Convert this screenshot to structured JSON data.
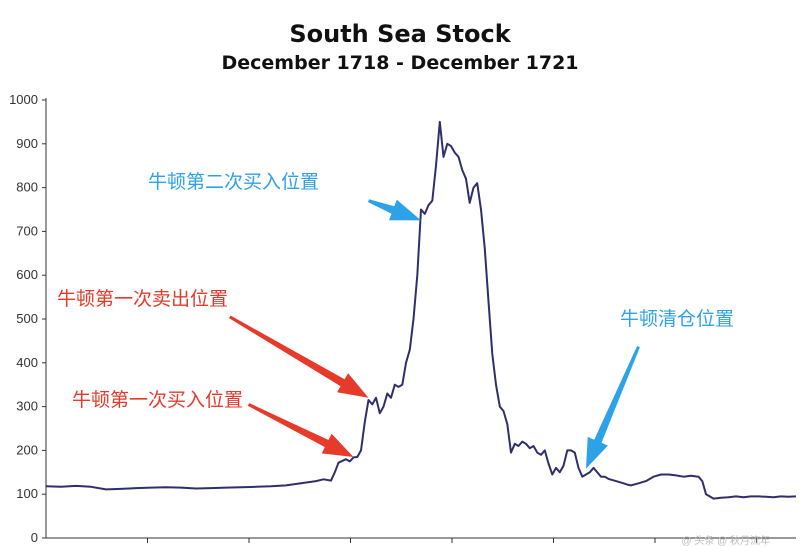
{
  "chart_data": {
    "type": "line",
    "title": "South Sea Stock",
    "subtitle": "December 1718 - December 1721",
    "xlabel": "",
    "ylabel": "",
    "ylim": [
      0,
      1000
    ],
    "yticks": [
      0,
      100,
      200,
      300,
      400,
      500,
      600,
      700,
      800,
      900,
      1000
    ],
    "grid": false,
    "series": [
      {
        "color": "#2f2f6e",
        "points": [
          [
            0,
            118
          ],
          [
            0.02,
            117
          ],
          [
            0.04,
            119
          ],
          [
            0.06,
            117
          ],
          [
            0.08,
            111
          ],
          [
            0.1,
            112
          ],
          [
            0.12,
            114
          ],
          [
            0.14,
            115
          ],
          [
            0.16,
            116
          ],
          [
            0.18,
            115
          ],
          [
            0.2,
            113
          ],
          [
            0.22,
            114
          ],
          [
            0.24,
            115
          ],
          [
            0.26,
            116
          ],
          [
            0.28,
            117
          ],
          [
            0.3,
            118
          ],
          [
            0.32,
            120
          ],
          [
            0.34,
            125
          ],
          [
            0.36,
            130
          ],
          [
            0.37,
            134
          ],
          [
            0.38,
            131
          ],
          [
            0.385,
            150
          ],
          [
            0.39,
            172
          ],
          [
            0.4,
            180
          ],
          [
            0.405,
            175
          ],
          [
            0.41,
            184
          ],
          [
            0.415,
            185
          ],
          [
            0.42,
            200
          ],
          [
            0.425,
            265
          ],
          [
            0.43,
            315
          ],
          [
            0.435,
            305
          ],
          [
            0.44,
            320
          ],
          [
            0.445,
            285
          ],
          [
            0.45,
            300
          ],
          [
            0.455,
            330
          ],
          [
            0.46,
            320
          ],
          [
            0.465,
            350
          ],
          [
            0.47,
            345
          ],
          [
            0.475,
            350
          ],
          [
            0.48,
            400
          ],
          [
            0.485,
            430
          ],
          [
            0.49,
            500
          ],
          [
            0.495,
            600
          ],
          [
            0.5,
            750
          ],
          [
            0.505,
            740
          ],
          [
            0.51,
            760
          ],
          [
            0.515,
            770
          ],
          [
            0.52,
            850
          ],
          [
            0.525,
            950
          ],
          [
            0.53,
            870
          ],
          [
            0.535,
            900
          ],
          [
            0.54,
            895
          ],
          [
            0.545,
            880
          ],
          [
            0.55,
            870
          ],
          [
            0.555,
            840
          ],
          [
            0.56,
            820
          ],
          [
            0.565,
            765
          ],
          [
            0.57,
            800
          ],
          [
            0.575,
            810
          ],
          [
            0.58,
            750
          ],
          [
            0.585,
            660
          ],
          [
            0.59,
            540
          ],
          [
            0.595,
            420
          ],
          [
            0.6,
            350
          ],
          [
            0.605,
            300
          ],
          [
            0.61,
            290
          ],
          [
            0.615,
            260
          ],
          [
            0.62,
            195
          ],
          [
            0.625,
            215
          ],
          [
            0.63,
            210
          ],
          [
            0.635,
            220
          ],
          [
            0.64,
            215
          ],
          [
            0.645,
            205
          ],
          [
            0.65,
            210
          ],
          [
            0.655,
            195
          ],
          [
            0.66,
            190
          ],
          [
            0.665,
            200
          ],
          [
            0.67,
            170
          ],
          [
            0.675,
            145
          ],
          [
            0.68,
            160
          ],
          [
            0.685,
            150
          ],
          [
            0.69,
            165
          ],
          [
            0.695,
            200
          ],
          [
            0.7,
            200
          ],
          [
            0.705,
            195
          ],
          [
            0.71,
            160
          ],
          [
            0.715,
            140
          ],
          [
            0.72,
            145
          ],
          [
            0.725,
            150
          ],
          [
            0.73,
            160
          ],
          [
            0.735,
            150
          ],
          [
            0.74,
            140
          ],
          [
            0.745,
            140
          ],
          [
            0.75,
            135
          ],
          [
            0.76,
            130
          ],
          [
            0.77,
            125
          ],
          [
            0.775,
            122
          ],
          [
            0.78,
            120
          ],
          [
            0.79,
            125
          ],
          [
            0.8,
            130
          ],
          [
            0.81,
            140
          ],
          [
            0.82,
            145
          ],
          [
            0.83,
            145
          ],
          [
            0.84,
            143
          ],
          [
            0.85,
            140
          ],
          [
            0.86,
            142
          ],
          [
            0.87,
            140
          ],
          [
            0.875,
            130
          ],
          [
            0.88,
            100
          ],
          [
            0.885,
            95
          ],
          [
            0.89,
            90
          ],
          [
            0.9,
            92
          ],
          [
            0.91,
            93
          ],
          [
            0.92,
            95
          ],
          [
            0.93,
            93
          ],
          [
            0.94,
            95
          ],
          [
            0.95,
            95
          ],
          [
            0.96,
            94
          ],
          [
            0.97,
            93
          ],
          [
            0.98,
            95
          ],
          [
            0.99,
            94
          ],
          [
            1.0,
            95
          ]
        ]
      }
    ],
    "annotations": [
      {
        "text": "牛顿第二次买入位置",
        "color": "#2ea2e6",
        "target": [
          0.5,
          725
        ],
        "from": [
          0.43,
          770
        ]
      },
      {
        "text": "牛顿第一次卖出位置",
        "color": "#e63a2b",
        "target": [
          0.43,
          320
        ],
        "from": [
          0.245,
          505
        ]
      },
      {
        "text": "牛顿第一次买入位置",
        "color": "#e63a2b",
        "target": [
          0.41,
          185
        ],
        "from": [
          0.27,
          305
        ]
      },
      {
        "text": "牛顿清仓位置",
        "color": "#2ea2e6",
        "target": [
          0.72,
          158
        ],
        "from": [
          0.79,
          437
        ]
      }
    ]
  },
  "watermark": "@ 头条 @ 秋月流年"
}
